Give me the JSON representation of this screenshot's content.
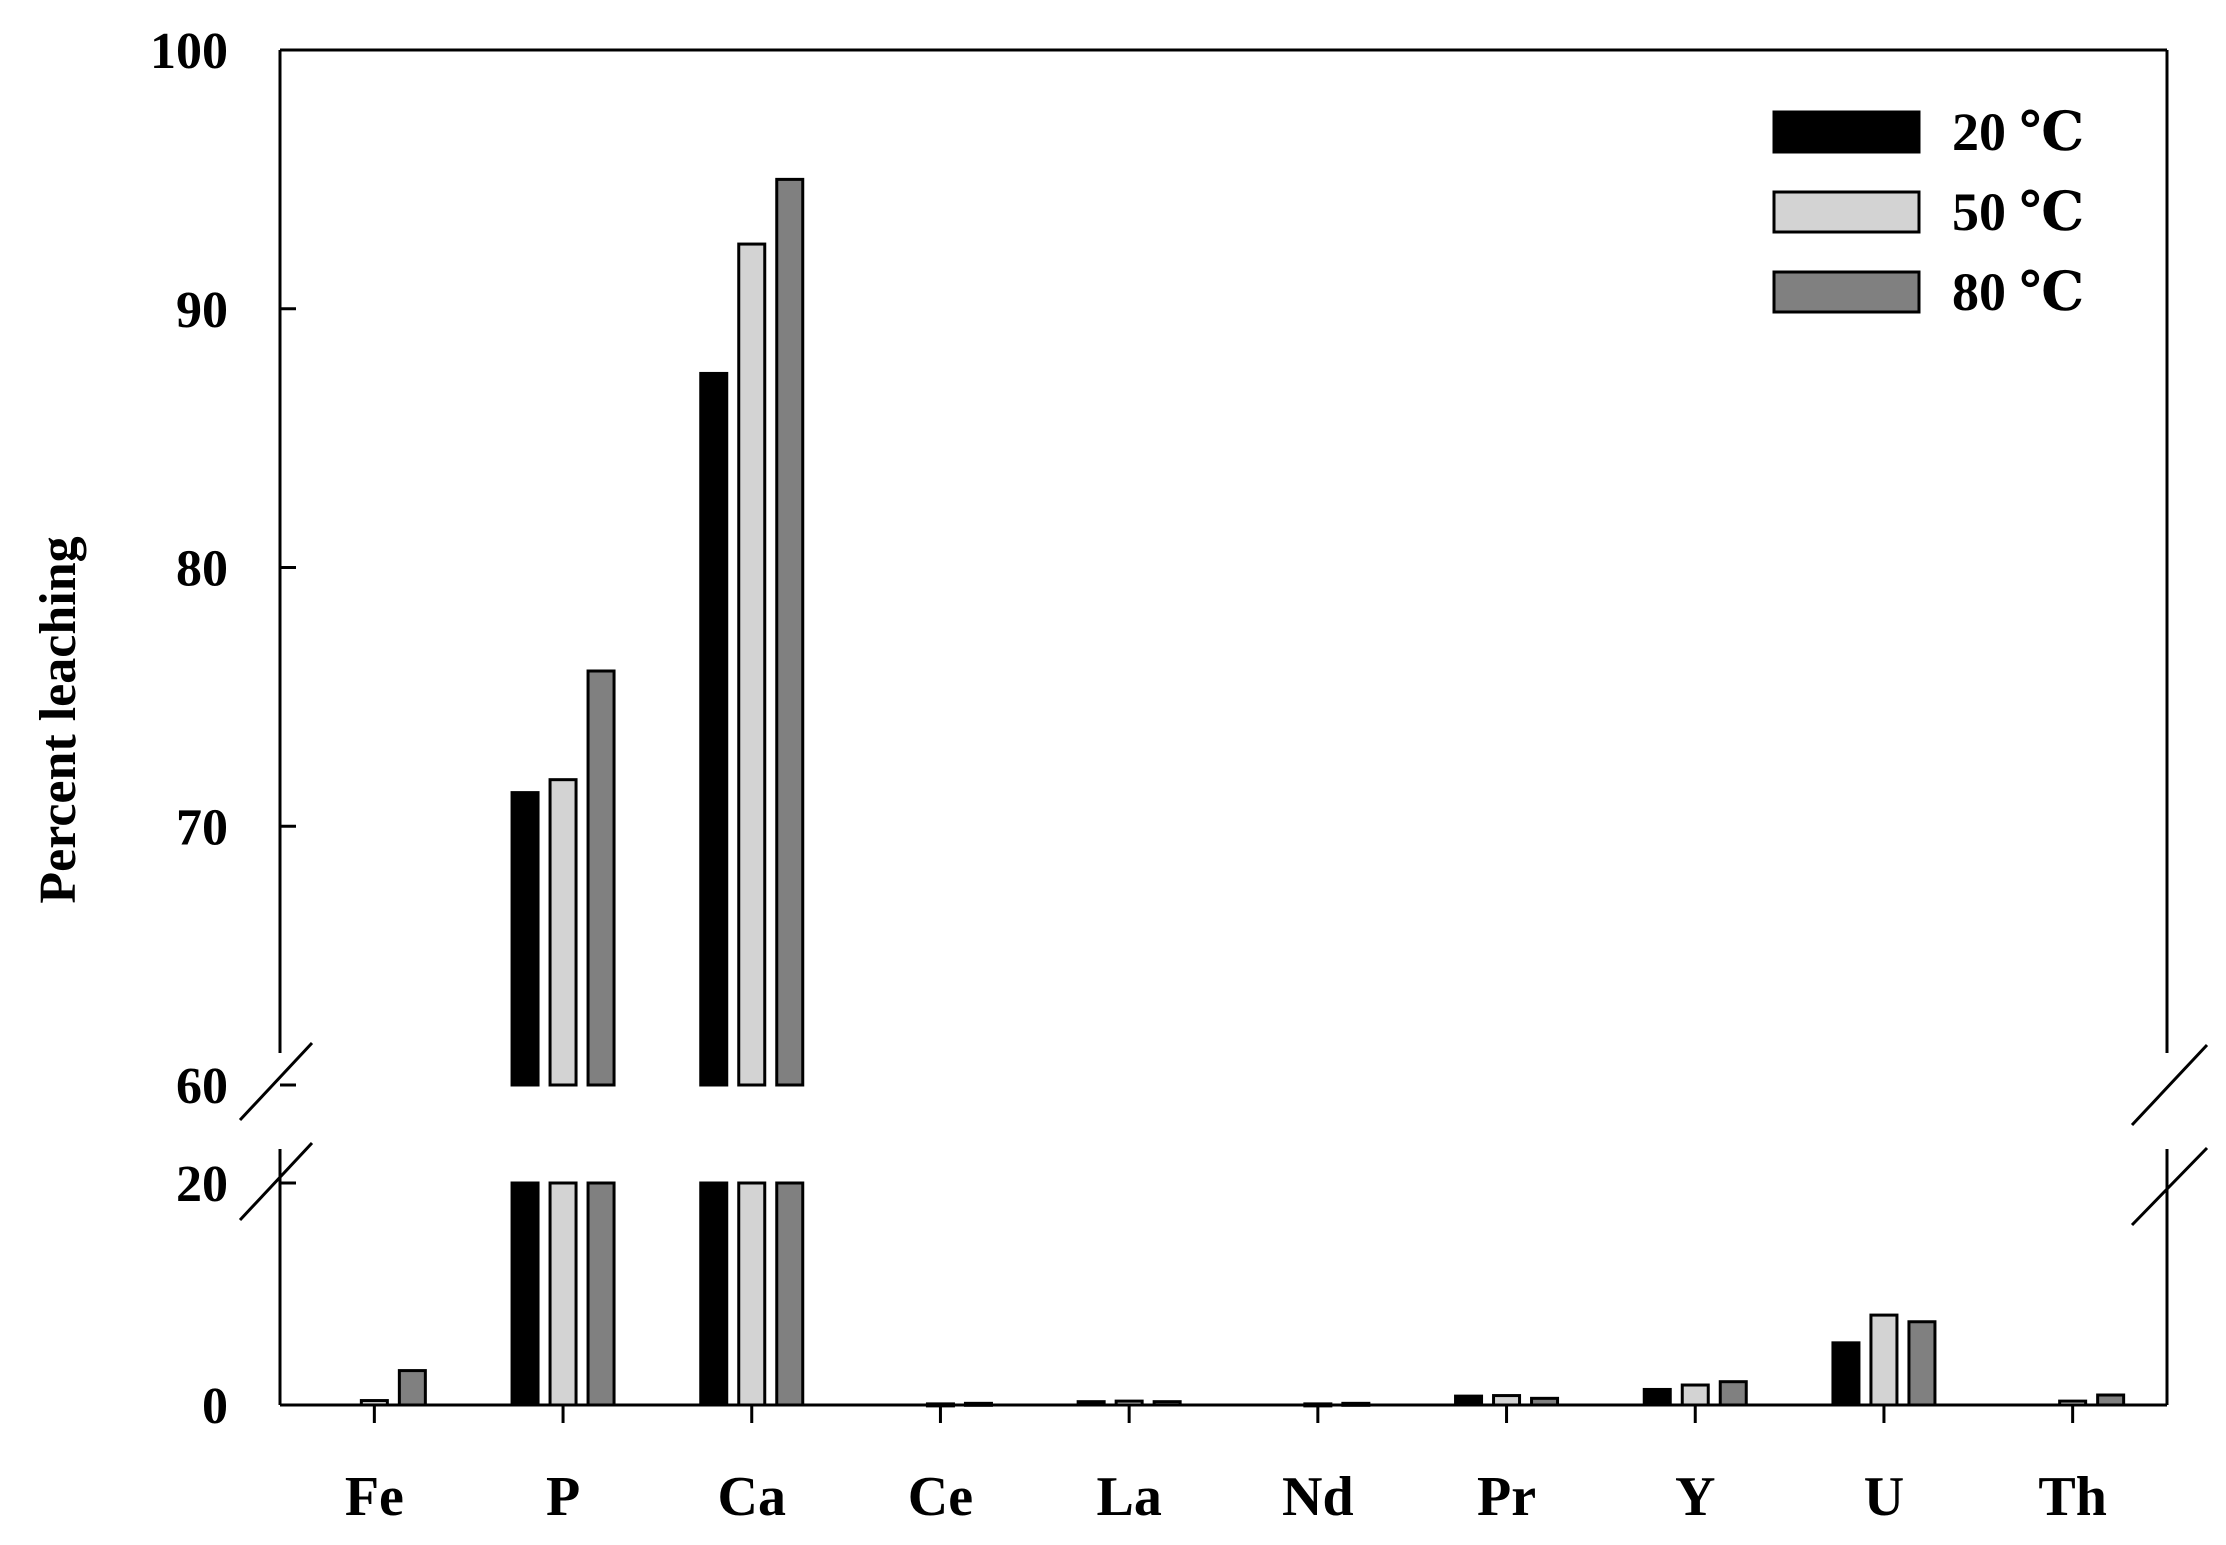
{
  "chart_data": {
    "type": "bar",
    "title": "",
    "xlabel": "",
    "ylabel": "Percent leaching",
    "categories": [
      "Fe",
      "P",
      "Ca",
      "Ce",
      "La",
      "Nd",
      "Pr",
      "Y",
      "U",
      "Th"
    ],
    "series": [
      {
        "name": "20 ℃",
        "color": "#000000",
        "values": [
          0,
          71.3,
          87.5,
          0,
          0.3,
          0,
          0.8,
          1.4,
          5.6,
          0
        ]
      },
      {
        "name": "50 ℃",
        "color": "#d3d3d3",
        "values": [
          0.4,
          71.8,
          92.5,
          0.1,
          0.35,
          0.1,
          0.85,
          1.8,
          8.1,
          0.35
        ]
      },
      {
        "name": "80 ℃",
        "color": "#808080",
        "values": [
          3.1,
          76.0,
          95.0,
          0.15,
          0.3,
          0.15,
          0.6,
          2.1,
          7.5,
          0.9
        ]
      }
    ],
    "axis_break": {
      "lower_range": [
        0,
        20
      ],
      "upper_range": [
        60,
        100
      ]
    },
    "y_ticks": [
      {
        "value": 0,
        "label": "0"
      },
      {
        "value": 20,
        "label": "20"
      },
      {
        "value": 60,
        "label": "60"
      },
      {
        "value": 70,
        "label": "70"
      },
      {
        "value": 80,
        "label": "80"
      },
      {
        "value": 90,
        "label": "90"
      },
      {
        "value": 100,
        "label": "100"
      }
    ],
    "legend_position": "top-right",
    "grid": false
  }
}
